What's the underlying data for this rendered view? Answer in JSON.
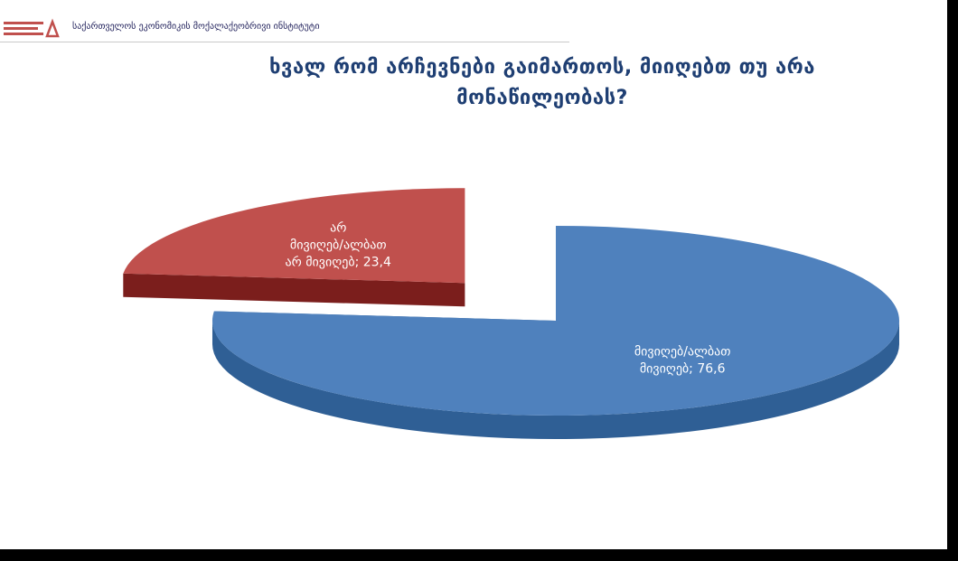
{
  "header": {
    "org_name": "საქართველოს ეკონომიკის მოქალაქეობრივი ინსტიტუტი"
  },
  "chart_data": {
    "type": "pie",
    "title": "ხვალ რომ არჩევნები გაიმართოს, მიიღებთ თუ არა მონაწილეობას?",
    "title_lines": [
      "ხვალ რომ არჩევნები გაიმართოს, მიიღებთ თუ არა",
      "მონაწილეობას?"
    ],
    "slices": [
      {
        "label_lines": [
          "მივიღებ/ალბათ",
          "მივიღებ; 76,6"
        ],
        "value": 76.6,
        "color": "#4f81bd",
        "side_color": "#2f5f95",
        "exploded": false
      },
      {
        "label_lines": [
          "არ",
          "მივიღებ/ალბათ",
          "არ მივიღებ; 23,4"
        ],
        "value": 23.4,
        "color": "#c0504d",
        "side_color": "#7b1e1c",
        "exploded": true
      }
    ],
    "legend": "none",
    "style": "3d-exploded"
  }
}
